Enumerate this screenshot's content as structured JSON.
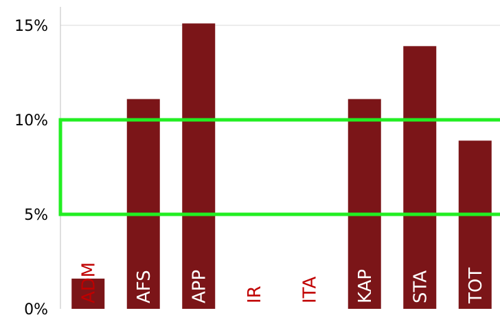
{
  "colors": {
    "bar": "#7b1518",
    "label_on_bar": "#ffffff",
    "label_no_bar": "#c00000",
    "highlight_box": "#22ee22",
    "gridline": "#d9d9d9",
    "axis": "#bfbfbf"
  },
  "chart_data": {
    "type": "bar",
    "categories": [
      "ADM",
      "AFS",
      "APP",
      "IR",
      "ITA",
      "KAP",
      "STA",
      "TOT"
    ],
    "values": [
      1.6,
      11.1,
      15.1,
      0,
      0,
      11.1,
      13.9,
      8.9
    ],
    "ylim": [
      0,
      16
    ],
    "yticks": [
      "0%",
      "5%",
      "10%",
      "15%"
    ],
    "ytick_values": [
      0,
      5,
      10,
      15
    ],
    "grid": true,
    "highlight_band": [
      5,
      10
    ]
  }
}
